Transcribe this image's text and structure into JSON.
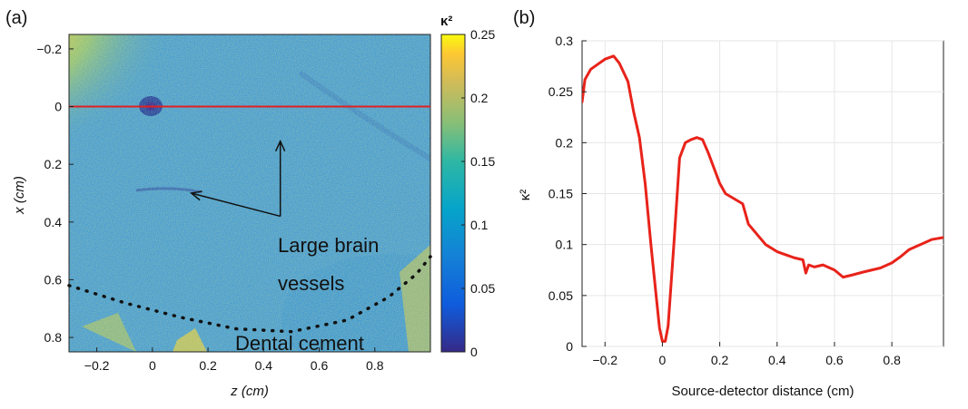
{
  "chart_data": [
    {
      "panel": "(a)",
      "type": "heatmap",
      "title": "",
      "xlabel": "z (cm)",
      "ylabel": "x (cm)",
      "xlim": [
        -0.3,
        1.0
      ],
      "ylim": [
        -0.25,
        0.85
      ],
      "y_inverted": true,
      "x_ticks": [
        "-0.2",
        "0",
        "0.2",
        "0.4",
        "0.6",
        "0.8"
      ],
      "x_tick_values": [
        -0.2,
        0,
        0.2,
        0.4,
        0.6,
        0.8
      ],
      "y_ticks": [
        "-0.2",
        "0",
        "0.2",
        "0.4",
        "0.6",
        "0.8"
      ],
      "y_tick_values": [
        -0.2,
        0,
        0.2,
        0.4,
        0.6,
        0.8
      ],
      "colorbar": {
        "label": "κ²",
        "range": [
          0,
          0.25
        ],
        "ticks": [
          "0",
          "0.05",
          "0.1",
          "0.15",
          "0.2",
          "0.25"
        ],
        "tick_values": [
          0,
          0.05,
          0.1,
          0.15,
          0.2,
          0.25
        ],
        "colormap": "parula"
      },
      "red_line": {
        "x_value": 0,
        "z_range": [
          -0.3,
          1.0
        ],
        "color": "#e02020"
      },
      "annotations": [
        {
          "text_lines": [
            "Large brain",
            "vessels"
          ],
          "arrow_tips": [
            [
              0.14,
              0.3
            ],
            [
              0.46,
              0.12
            ]
          ],
          "arrow_corner": [
            0.46,
            0.38
          ]
        },
        {
          "text_lines": [
            "Dental cement"
          ],
          "dotted_curve": [
            [
              -0.3,
              0.62
            ],
            [
              -0.1,
              0.68
            ],
            [
              0.1,
              0.73
            ],
            [
              0.3,
              0.77
            ],
            [
              0.5,
              0.78
            ],
            [
              0.7,
              0.74
            ],
            [
              0.85,
              0.66
            ],
            [
              0.95,
              0.58
            ],
            [
              1.0,
              0.52
            ]
          ]
        }
      ]
    },
    {
      "panel": "(b)",
      "type": "line",
      "title": "",
      "xlabel": "Source-detector distance (cm)",
      "ylabel": "κ²",
      "xlim": [
        -0.28,
        0.98
      ],
      "ylim": [
        0,
        0.3
      ],
      "x_ticks": [
        "-0.2",
        "0",
        "0.2",
        "0.4",
        "0.6",
        "0.8"
      ],
      "x_tick_values": [
        -0.2,
        0,
        0.2,
        0.4,
        0.6,
        0.8
      ],
      "y_ticks": [
        "0",
        "0.05",
        "0.1",
        "0.15",
        "0.2",
        "0.25",
        "0.3"
      ],
      "y_tick_values": [
        0,
        0.05,
        0.1,
        0.15,
        0.2,
        0.25,
        0.3
      ],
      "grid": true,
      "series": [
        {
          "color": "#e8231a",
          "x": [
            -0.28,
            -0.27,
            -0.25,
            -0.23,
            -0.2,
            -0.17,
            -0.15,
            -0.12,
            -0.1,
            -0.08,
            -0.06,
            -0.04,
            -0.02,
            -0.01,
            0.0,
            0.01,
            0.02,
            0.04,
            0.06,
            0.08,
            0.1,
            0.12,
            0.14,
            0.16,
            0.18,
            0.2,
            0.22,
            0.25,
            0.28,
            0.3,
            0.33,
            0.36,
            0.4,
            0.43,
            0.46,
            0.49,
            0.5,
            0.51,
            0.53,
            0.56,
            0.6,
            0.63,
            0.66,
            0.7,
            0.73,
            0.76,
            0.8,
            0.83,
            0.86,
            0.9,
            0.94,
            0.98
          ],
          "y": [
            0.24,
            0.262,
            0.272,
            0.276,
            0.282,
            0.285,
            0.278,
            0.26,
            0.23,
            0.205,
            0.16,
            0.1,
            0.045,
            0.018,
            0.005,
            0.005,
            0.02,
            0.1,
            0.185,
            0.2,
            0.203,
            0.205,
            0.203,
            0.19,
            0.175,
            0.16,
            0.15,
            0.145,
            0.14,
            0.12,
            0.11,
            0.1,
            0.093,
            0.09,
            0.087,
            0.085,
            0.072,
            0.08,
            0.078,
            0.08,
            0.075,
            0.068,
            0.07,
            0.073,
            0.075,
            0.077,
            0.082,
            0.088,
            0.095,
            0.1,
            0.105,
            0.107
          ]
        }
      ]
    }
  ],
  "annotations_text": {
    "vessels_line1": "Large brain",
    "vessels_line2": "vessels",
    "cement": "Dental cement"
  }
}
